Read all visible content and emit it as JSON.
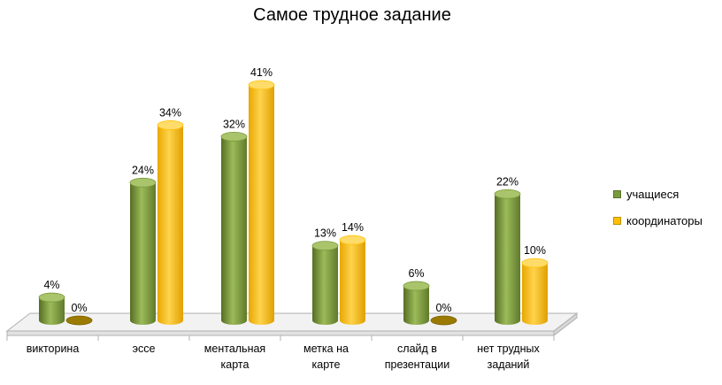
{
  "chart_data": {
    "type": "bar",
    "title": "Самое трудное задание",
    "categories": [
      [
        "викторина"
      ],
      [
        "эссе"
      ],
      [
        "ментальная",
        "карта"
      ],
      [
        "метка на",
        "карте"
      ],
      [
        "слайд в",
        "презентации"
      ],
      [
        "нет трудных",
        "заданий"
      ]
    ],
    "series": [
      {
        "name": "учащиеся",
        "values": [
          4,
          24,
          32,
          13,
          6,
          22
        ],
        "labels": [
          "4%",
          "24%",
          "32%",
          "13%",
          "6%",
          "22%"
        ]
      },
      {
        "name": "координаторы",
        "values": [
          0,
          34,
          41,
          14,
          0,
          10
        ],
        "labels": [
          "0%",
          "34%",
          "41%",
          "14%",
          "0%",
          "10%"
        ]
      }
    ],
    "ylim": [
      0,
      41
    ],
    "grid": false,
    "legend_position": "right",
    "colors": {
      "series0": "#7a9a3c",
      "series1": "#ffc000"
    }
  }
}
